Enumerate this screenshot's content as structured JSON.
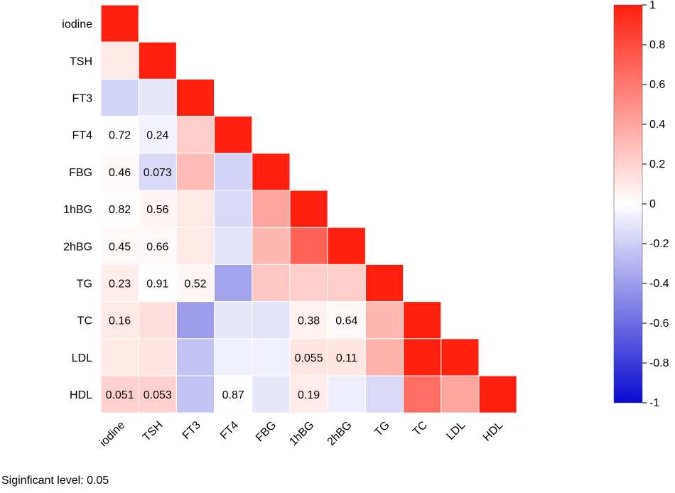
{
  "chart_data": {
    "type": "heatmap",
    "variables": [
      "iodine",
      "TSH",
      "FT3",
      "FT4",
      "FBG",
      "1hBG",
      "2hBG",
      "TG",
      "TC",
      "LDL",
      "HDL"
    ],
    "matrix_layout": "lower-triangle",
    "correlations": [
      [
        1.0
      ],
      [
        0.1,
        1.0
      ],
      [
        -0.18,
        -0.1,
        1.0
      ],
      [
        0.01,
        -0.05,
        0.22,
        1.0
      ],
      [
        0.03,
        -0.15,
        0.3,
        -0.18,
        1.0
      ],
      [
        0.01,
        0.04,
        0.1,
        -0.15,
        0.4,
        1.0
      ],
      [
        0.03,
        0.03,
        0.1,
        -0.12,
        0.32,
        0.7,
        1.0
      ],
      [
        0.08,
        0.01,
        0.04,
        -0.38,
        0.25,
        0.22,
        0.22,
        1.0
      ],
      [
        0.1,
        0.14,
        -0.4,
        -0.1,
        -0.12,
        0.06,
        0.03,
        0.32,
        1.0
      ],
      [
        0.1,
        0.12,
        -0.25,
        -0.06,
        -0.06,
        0.12,
        0.12,
        0.35,
        1.0,
        1.0
      ],
      [
        0.21,
        0.21,
        -0.25,
        0.01,
        -0.1,
        0.09,
        -0.07,
        -0.15,
        0.65,
        0.4,
        1.0
      ]
    ],
    "p_values": [
      {
        "row": "FT4",
        "col": "iodine",
        "label": "0.72"
      },
      {
        "row": "FT4",
        "col": "TSH",
        "label": "0.24"
      },
      {
        "row": "FBG",
        "col": "iodine",
        "label": "0.46"
      },
      {
        "row": "FBG",
        "col": "TSH",
        "label": "0.073"
      },
      {
        "row": "1hBG",
        "col": "iodine",
        "label": "0.82"
      },
      {
        "row": "1hBG",
        "col": "TSH",
        "label": "0.56"
      },
      {
        "row": "2hBG",
        "col": "iodine",
        "label": "0.45"
      },
      {
        "row": "2hBG",
        "col": "TSH",
        "label": "0.66"
      },
      {
        "row": "TG",
        "col": "iodine",
        "label": "0.23"
      },
      {
        "row": "TG",
        "col": "TSH",
        "label": "0.91"
      },
      {
        "row": "TG",
        "col": "FT3",
        "label": "0.52"
      },
      {
        "row": "TC",
        "col": "iodine",
        "label": "0.16"
      },
      {
        "row": "TC",
        "col": "1hBG",
        "label": "0.38"
      },
      {
        "row": "TC",
        "col": "2hBG",
        "label": "0.64"
      },
      {
        "row": "LDL",
        "col": "1hBG",
        "label": "0.055"
      },
      {
        "row": "LDL",
        "col": "2hBG",
        "label": "0.11"
      },
      {
        "row": "HDL",
        "col": "iodine",
        "label": "0.051"
      },
      {
        "row": "HDL",
        "col": "TSH",
        "label": "0.053"
      },
      {
        "row": "HDL",
        "col": "FT4",
        "label": "0.87"
      },
      {
        "row": "HDL",
        "col": "1hBG",
        "label": "0.19"
      }
    ],
    "colorbar": {
      "ticks": [
        "1",
        "0.8",
        "0.6",
        "0.4",
        "0.2",
        "0",
        "-0.2",
        "-0.4",
        "-0.6",
        "-0.8",
        "-1"
      ],
      "range": [
        -1,
        1
      ],
      "colors": {
        "high": "#ff1f0f",
        "mid": "#ffffff",
        "low": "#0a0ad0"
      }
    },
    "title": "",
    "legend_position": "right"
  },
  "footnote": "Siginficant level: 0.05"
}
